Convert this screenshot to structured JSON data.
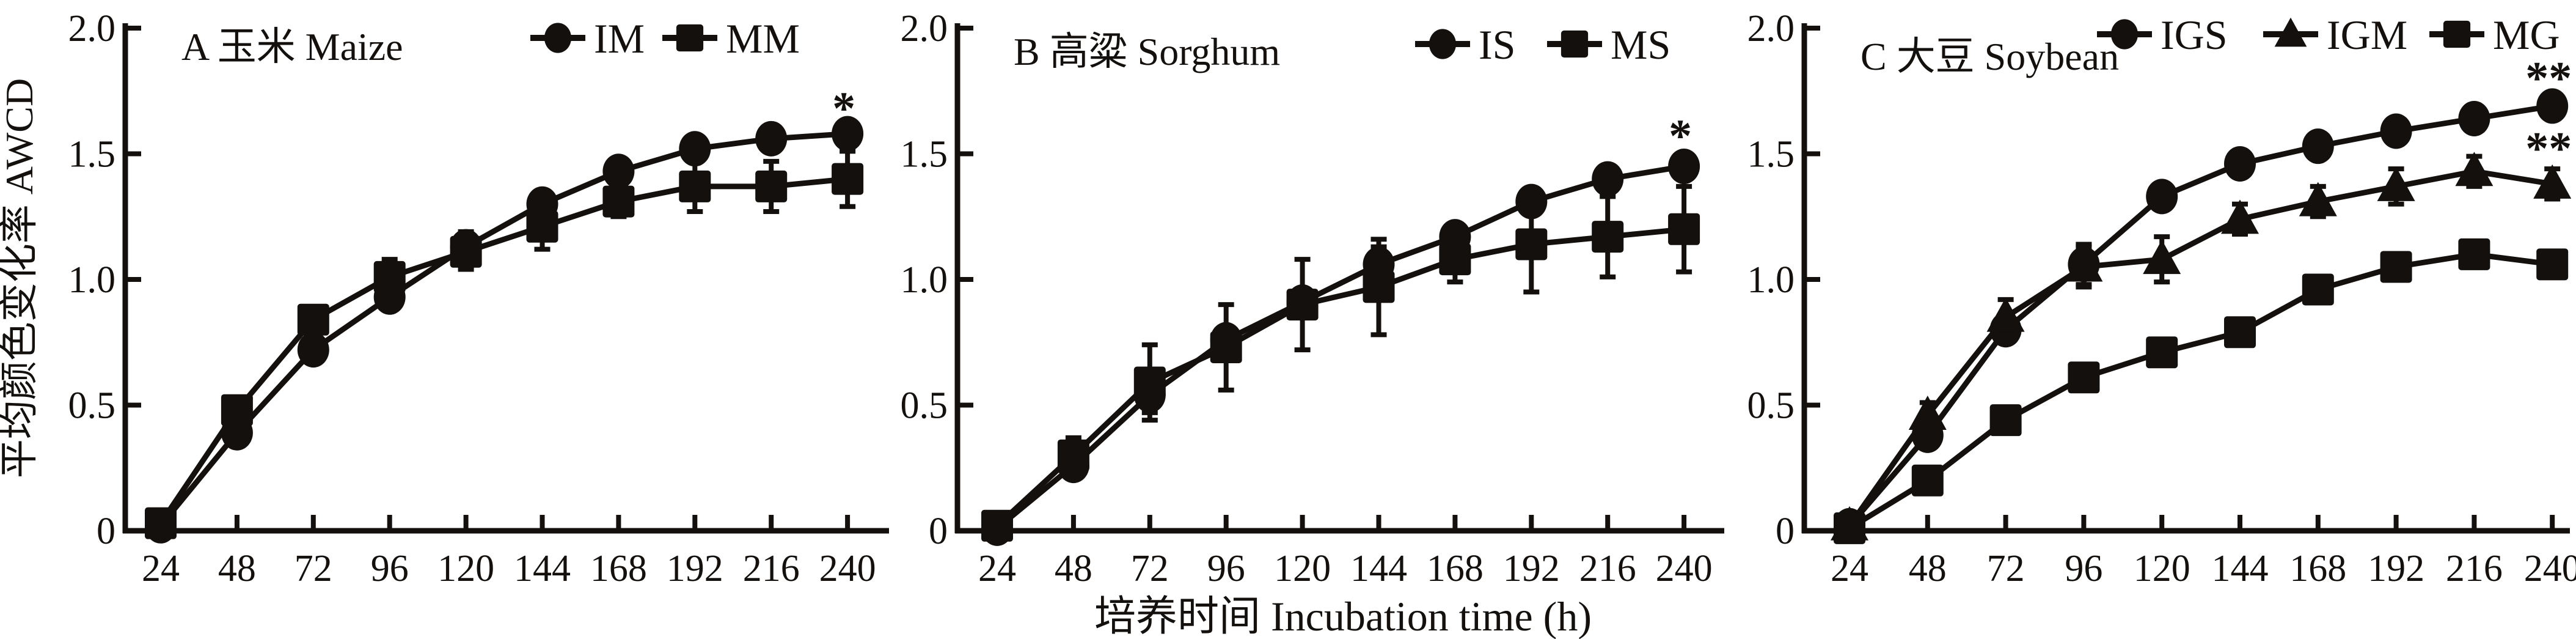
{
  "figure": {
    "background": "#ffffff",
    "ink_color": "#13100d",
    "ylabel": "平均颜色变化率 AWCD",
    "xlabel": "培养时间 Incubation time (h)"
  },
  "chart_data": [
    {
      "type": "line",
      "panel_label": "A",
      "title": "A 玉米 Maize",
      "x": [
        24,
        48,
        72,
        96,
        120,
        144,
        168,
        192,
        216,
        240
      ],
      "ylim": [
        0,
        2.0
      ],
      "yticks": [
        0,
        0.5,
        1.0,
        1.5,
        2.0
      ],
      "grid": false,
      "legend_position": "top-right",
      "series": [
        {
          "name": "IM",
          "marker": "circle",
          "values": [
            0.02,
            0.39,
            0.72,
            0.93,
            1.13,
            1.3,
            1.43,
            1.52,
            1.56,
            1.58
          ],
          "errors": [
            0.01,
            0.03,
            0.02,
            0.04,
            0.06,
            0.04,
            0.04,
            0.04,
            0.02,
            0.02
          ],
          "significance": "*"
        },
        {
          "name": "MM",
          "marker": "square",
          "values": [
            0.03,
            0.48,
            0.84,
            1.01,
            1.11,
            1.21,
            1.31,
            1.37,
            1.37,
            1.4
          ],
          "errors": [
            0.01,
            0.05,
            0.03,
            0.07,
            0.07,
            0.09,
            0.06,
            0.1,
            0.1,
            0.11
          ],
          "significance": ""
        }
      ]
    },
    {
      "type": "line",
      "panel_label": "B",
      "title": "B 高粱 Sorghum",
      "x": [
        24,
        48,
        72,
        96,
        120,
        144,
        168,
        192,
        216,
        240
      ],
      "ylim": [
        0,
        2.0
      ],
      "yticks": [
        0,
        0.5,
        1.0,
        1.5,
        2.0
      ],
      "grid": false,
      "legend_position": "top-right",
      "series": [
        {
          "name": "IS",
          "marker": "circle",
          "values": [
            0.01,
            0.26,
            0.54,
            0.76,
            0.91,
            1.06,
            1.17,
            1.31,
            1.4,
            1.45
          ],
          "errors": [
            0.01,
            0.05,
            0.07,
            0.05,
            0.04,
            0.07,
            0.04,
            0.03,
            0.05,
            0.04
          ],
          "significance": "*"
        },
        {
          "name": "MS",
          "marker": "square",
          "values": [
            0.02,
            0.3,
            0.59,
            0.73,
            0.9,
            0.97,
            1.08,
            1.14,
            1.17,
            1.2
          ],
          "errors": [
            0.01,
            0.07,
            0.15,
            0.17,
            0.18,
            0.19,
            0.09,
            0.19,
            0.16,
            0.17
          ],
          "significance": ""
        }
      ]
    },
    {
      "type": "line",
      "panel_label": "C",
      "title": "C 大豆 Soybean",
      "x": [
        24,
        48,
        72,
        96,
        120,
        144,
        168,
        192,
        216,
        240
      ],
      "ylim": [
        0,
        2.0
      ],
      "yticks": [
        0,
        0.5,
        1.0,
        1.5,
        2.0
      ],
      "grid": false,
      "legend_position": "top-right",
      "series": [
        {
          "name": "IGS",
          "marker": "circle",
          "values": [
            0.02,
            0.38,
            0.8,
            1.06,
            1.33,
            1.46,
            1.53,
            1.59,
            1.64,
            1.69
          ],
          "errors": [
            0.01,
            0.02,
            0.04,
            0.08,
            0.02,
            0.02,
            0.02,
            0.02,
            0.02,
            0.03
          ],
          "significance": "**"
        },
        {
          "name": "IGM",
          "marker": "triangle",
          "values": [
            0.02,
            0.46,
            0.85,
            1.05,
            1.08,
            1.24,
            1.31,
            1.37,
            1.43,
            1.38
          ],
          "errors": [
            0.01,
            0.05,
            0.07,
            0.08,
            0.09,
            0.06,
            0.06,
            0.07,
            0.06,
            0.06
          ],
          "significance": "**"
        },
        {
          "name": "MG",
          "marker": "square",
          "values": [
            0.01,
            0.2,
            0.44,
            0.61,
            0.71,
            0.79,
            0.96,
            1.05,
            1.1,
            1.06
          ],
          "errors": [
            0.01,
            0.02,
            0.05,
            0.05,
            0.04,
            0.03,
            0.03,
            0.03,
            0.04,
            0.05
          ],
          "significance": ""
        }
      ]
    }
  ]
}
